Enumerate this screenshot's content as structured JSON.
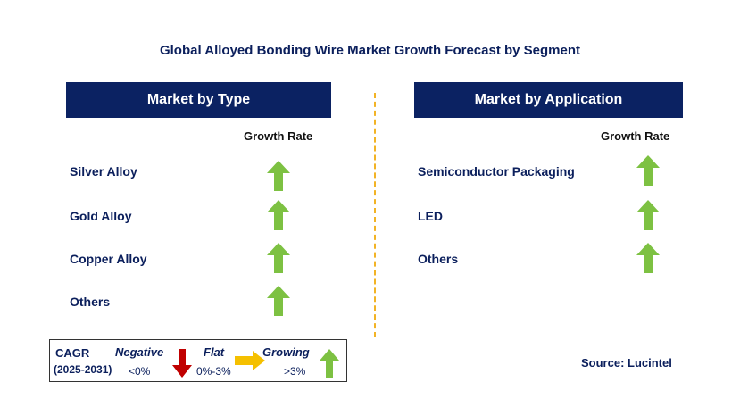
{
  "title": "Global Alloyed Bonding Wire Market Growth Forecast by Segment",
  "left_panel": {
    "header": "Market by Type",
    "growth_label": "Growth Rate",
    "rows": [
      {
        "label": "Silver Alloy",
        "trend": "growing"
      },
      {
        "label": "Gold Alloy",
        "trend": "growing"
      },
      {
        "label": "Copper Alloy",
        "trend": "growing"
      },
      {
        "label": "Others",
        "trend": "growing"
      }
    ]
  },
  "right_panel": {
    "header": "Market by Application",
    "growth_label": "Growth Rate",
    "rows": [
      {
        "label": "Semiconductor Packaging",
        "trend": "growing"
      },
      {
        "label": "LED",
        "trend": "growing"
      },
      {
        "label": "Others",
        "trend": "growing"
      }
    ]
  },
  "legend": {
    "cagr_label": "CAGR",
    "period": "(2025-2031)",
    "negative_label": "Negative",
    "negative_value": "<0%",
    "flat_label": "Flat",
    "flat_value": "0%-3%",
    "growing_label": "Growing",
    "growing_value": ">3%"
  },
  "source": "Source: Lucintel",
  "colors": {
    "header_bg": "#0b2262",
    "text_navy": "#0b1f5c",
    "growing_arrow": "#7dc142",
    "negative_arrow": "#c00000",
    "flat_arrow": "#f5c000",
    "divider": "#f2b325"
  }
}
